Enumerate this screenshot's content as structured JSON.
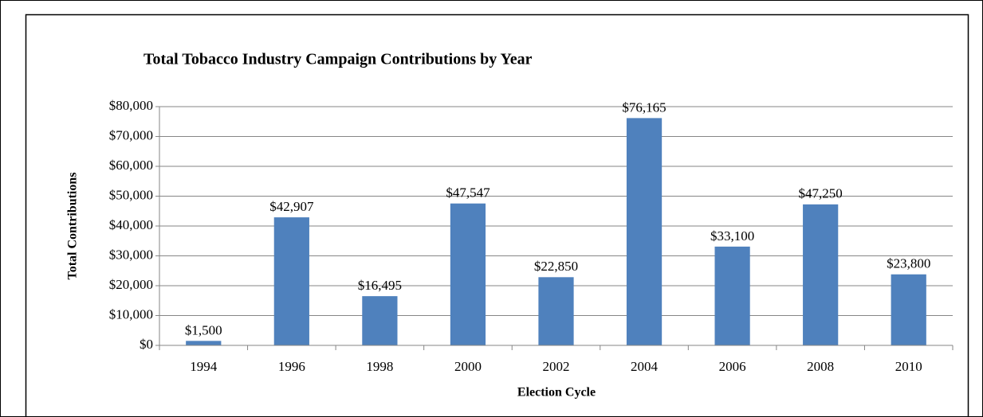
{
  "chart_data": {
    "type": "bar",
    "title": "Total Tobacco Industry Campaign Contributions by Year",
    "x_label": "Election Cycle",
    "y_label": "Total Contributions",
    "categories": [
      "1994",
      "1996",
      "1998",
      "2000",
      "2002",
      "2004",
      "2006",
      "2008",
      "2010"
    ],
    "values": [
      1500,
      42907,
      16495,
      47547,
      22850,
      76165,
      33100,
      47250,
      23800
    ],
    "value_labels": [
      "$1,500",
      "$42,907",
      "$16,495",
      "$47,547",
      "$22,850",
      "$76,165",
      "$33,100",
      "$47,250",
      "$23,800"
    ],
    "color": "#4f81bd",
    "ylim": [
      0,
      80000
    ],
    "yticks": [
      {
        "value": 0,
        "label": "$0"
      },
      {
        "value": 10000,
        "label": "$10,000"
      },
      {
        "value": 20000,
        "label": "$20,000"
      },
      {
        "value": 30000,
        "label": "$30,000"
      },
      {
        "value": 40000,
        "label": "$40,000"
      },
      {
        "value": 50000,
        "label": "$50,000"
      },
      {
        "value": 60000,
        "label": "$60,000"
      },
      {
        "value": 70000,
        "label": "$70,000"
      },
      {
        "value": 80000,
        "label": "$80,000"
      }
    ],
    "grid": true
  }
}
